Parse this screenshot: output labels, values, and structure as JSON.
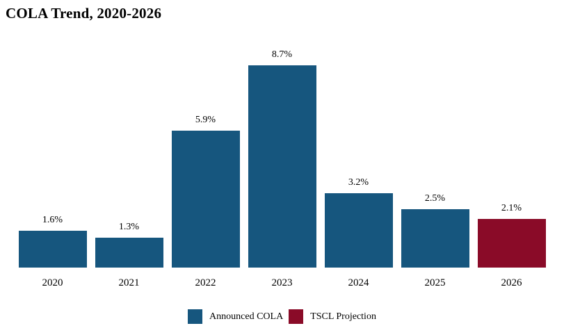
{
  "title": "COLA Trend, 2020-2026",
  "colors": {
    "announced": "#16567E",
    "projection": "#8A0B28",
    "background": "#FFFFFF",
    "text": "#000000"
  },
  "legend": [
    {
      "label": "Announced COLA",
      "color_key": "announced"
    },
    {
      "label": "TSCL Projection",
      "color_key": "projection"
    }
  ],
  "chart_data": {
    "type": "bar",
    "title": "COLA Trend, 2020-2026",
    "categories": [
      "2020",
      "2021",
      "2022",
      "2023",
      "2024",
      "2025",
      "2026"
    ],
    "series": [
      {
        "name": "Announced COLA",
        "values": [
          1.6,
          1.3,
          5.9,
          8.7,
          3.2,
          2.5,
          null
        ]
      },
      {
        "name": "TSCL Projection",
        "values": [
          null,
          null,
          null,
          null,
          null,
          null,
          2.1
        ]
      }
    ],
    "bars": [
      {
        "year": "2020",
        "value": 1.6,
        "label": "1.6%",
        "series": "Announced COLA"
      },
      {
        "year": "2021",
        "value": 1.3,
        "label": "1.3%",
        "series": "Announced COLA"
      },
      {
        "year": "2022",
        "value": 5.9,
        "label": "5.9%",
        "series": "Announced COLA"
      },
      {
        "year": "2023",
        "value": 8.7,
        "label": "8.7%",
        "series": "Announced COLA"
      },
      {
        "year": "2024",
        "value": 3.2,
        "label": "3.2%",
        "series": "Announced COLA"
      },
      {
        "year": "2025",
        "value": 2.5,
        "label": "2.5%",
        "series": "Announced COLA"
      },
      {
        "year": "2026",
        "value": 2.1,
        "label": "2.1%",
        "series": "TSCL Projection"
      }
    ],
    "xlabel": "",
    "ylabel": "",
    "ylim": [
      0,
      9.5
    ],
    "grid": false,
    "axes_visible": false,
    "data_labels": true,
    "legend_position": "bottom-center"
  }
}
